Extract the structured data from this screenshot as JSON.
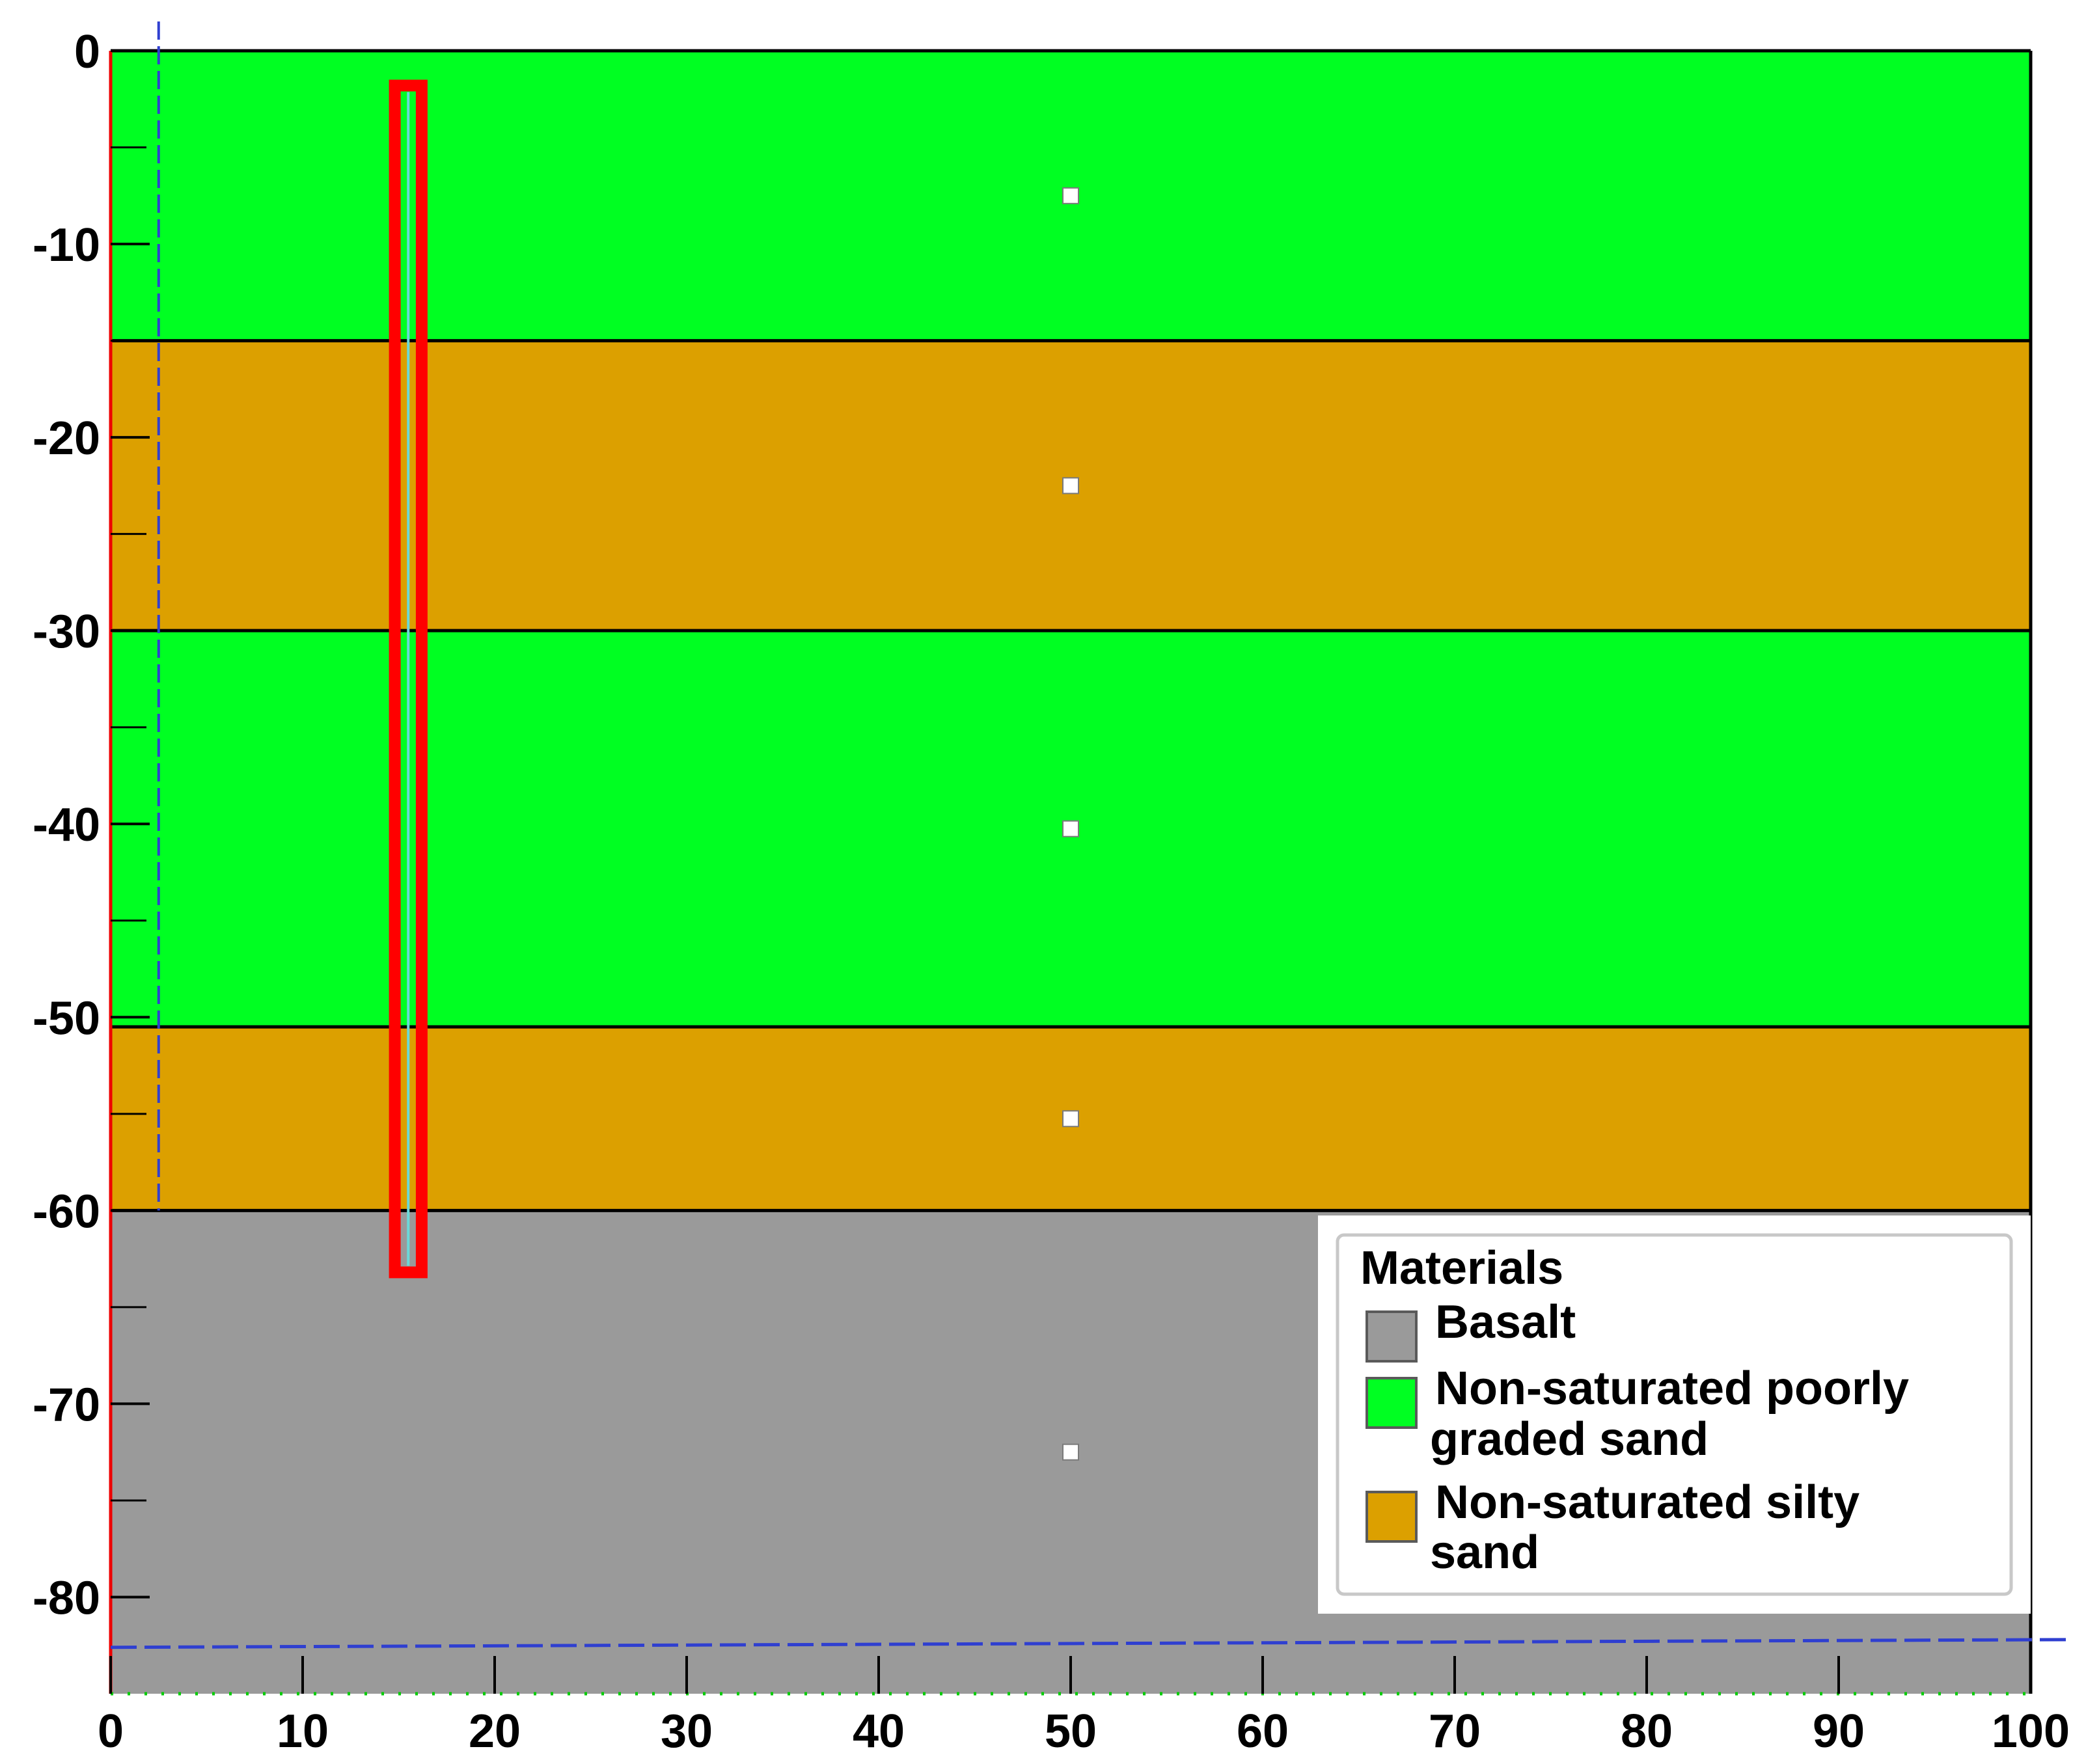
{
  "diagram": {
    "x_range": [
      0,
      100
    ],
    "y_range": [
      -85,
      0
    ],
    "x_ticks": [
      0,
      10,
      20,
      30,
      40,
      50,
      60,
      70,
      80,
      90,
      100
    ],
    "y_ticks": [
      0,
      -10,
      -20,
      -30,
      -40,
      -50,
      -60,
      -70,
      -80
    ],
    "layers": [
      {
        "material": "Non-saturated poorly graded sand",
        "top": 0,
        "bottom": -15,
        "color": "#00ff22",
        "marker": 50
      },
      {
        "material": "Non-saturated silty sand",
        "top": -15,
        "bottom": -30,
        "color": "#dca000",
        "marker": 50
      },
      {
        "material": "Non-saturated poorly graded sand",
        "top": -30,
        "bottom": -50.5,
        "color": "#00ff22",
        "marker": 50
      },
      {
        "material": "Non-saturated silty sand",
        "top": -50.5,
        "bottom": -60,
        "color": "#dca000",
        "marker": 50
      },
      {
        "material": "Basalt",
        "top": -60,
        "bottom": -85,
        "color": "#9a9a9a",
        "marker": 50
      }
    ],
    "pile": {
      "x_left": 14.8,
      "x_right": 16.2,
      "top": -1.8,
      "bottom": -63.2,
      "color": "#ff0000"
    },
    "water_table_left_x": 2.5,
    "water_table_bottom": {
      "y_left": -82.6,
      "y_right": -82.2
    },
    "legend": {
      "title": "Materials",
      "items": [
        {
          "label": "Basalt",
          "color": "#9a9a9a"
        },
        {
          "label_lines": [
            "Non-saturated poorly",
            "graded sand"
          ],
          "color": "#00ff22"
        },
        {
          "label_lines": [
            "Non-saturated silty",
            "sand"
          ],
          "color": "#dca000"
        }
      ]
    }
  }
}
